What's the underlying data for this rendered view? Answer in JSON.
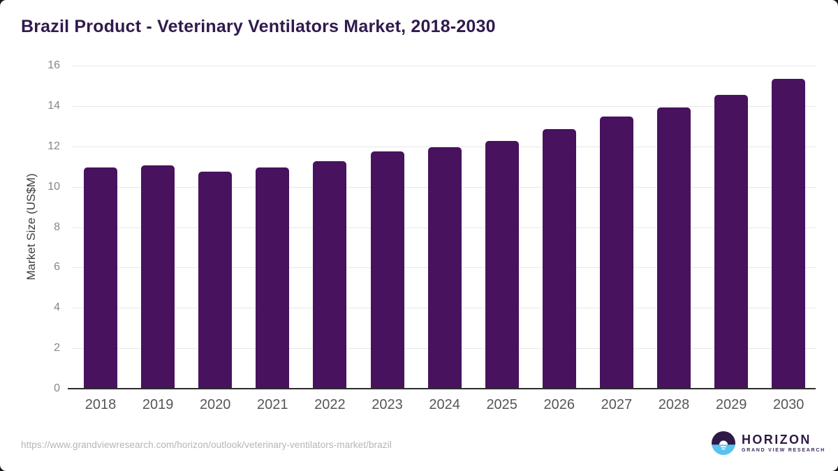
{
  "page": {
    "title": "Brazil Product - Veterinary Ventilators Market, 2018-2030",
    "source_url": "https://www.grandviewresearch.com/horizon/outlook/veterinary-ventilators-market/brazil",
    "brand": {
      "name": "HORIZON",
      "tagline": "GRAND VIEW RESEARCH"
    }
  },
  "colors": {
    "bar": "#48125f",
    "title": "#301a4d",
    "gridline": "#e7e7e7",
    "axis_line": "#2d2d2d",
    "y_tick_label": "#868686",
    "x_tick_label": "#565656",
    "url_text": "#b5b5b5",
    "logo_purple": "#2e1a47",
    "logo_blue": "#58c3f0"
  },
  "chart_data": {
    "type": "bar",
    "title": "Brazil Product - Veterinary Ventilators Market, 2018-2030",
    "categories": [
      "2018",
      "2019",
      "2020",
      "2021",
      "2022",
      "2023",
      "2024",
      "2025",
      "2026",
      "2027",
      "2028",
      "2029",
      "2030"
    ],
    "values": [
      10.96,
      11.06,
      10.75,
      10.96,
      11.28,
      11.76,
      11.97,
      12.28,
      12.86,
      13.47,
      13.94,
      14.55,
      15.36
    ],
    "xlabel": "",
    "ylabel": "Market Size (US$M)",
    "ylim": [
      0,
      16
    ],
    "yticks": [
      0,
      2,
      4,
      6,
      8,
      10,
      12,
      14,
      16
    ],
    "grid": "horizontal",
    "legend": "none",
    "bar_color": "#48125f"
  }
}
